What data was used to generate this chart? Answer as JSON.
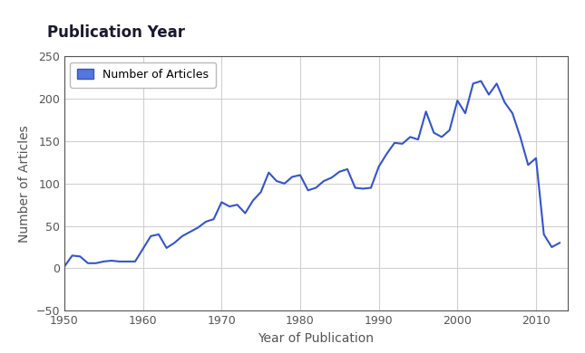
{
  "title": "Publication Year",
  "xlabel": "Year of Publication",
  "ylabel": "Number of Articles",
  "legend_label": "Number of Articles",
  "line_color": "#3355cc",
  "legend_fill_color": "#5577dd",
  "background_color": "#ffffff",
  "grid_color": "#d0d0d0",
  "spine_color": "#555555",
  "tick_color": "#555555",
  "xlim": [
    1950,
    2014
  ],
  "ylim": [
    -50,
    250
  ],
  "yticks": [
    -50,
    0,
    50,
    100,
    150,
    200,
    250
  ],
  "xticks": [
    1950,
    1960,
    1970,
    1980,
    1990,
    2000,
    2010
  ],
  "years": [
    1950,
    1951,
    1952,
    1953,
    1954,
    1955,
    1956,
    1957,
    1958,
    1959,
    1960,
    1961,
    1962,
    1963,
    1964,
    1965,
    1966,
    1967,
    1968,
    1969,
    1970,
    1971,
    1972,
    1973,
    1974,
    1975,
    1976,
    1977,
    1978,
    1979,
    1980,
    1981,
    1982,
    1983,
    1984,
    1985,
    1986,
    1987,
    1988,
    1989,
    1990,
    1991,
    1992,
    1993,
    1994,
    1995,
    1996,
    1997,
    1998,
    1999,
    2000,
    2001,
    2002,
    2003,
    2004,
    2005,
    2006,
    2007,
    2008,
    2009,
    2010,
    2011,
    2012,
    2013
  ],
  "values": [
    2,
    15,
    14,
    6,
    6,
    8,
    9,
    8,
    8,
    8,
    23,
    38,
    40,
    24,
    30,
    38,
    43,
    48,
    55,
    58,
    78,
    73,
    75,
    65,
    80,
    90,
    113,
    103,
    100,
    108,
    110,
    92,
    95,
    103,
    107,
    114,
    117,
    95,
    94,
    95,
    120,
    135,
    148,
    147,
    155,
    152,
    185,
    160,
    155,
    163,
    198,
    183,
    218,
    221,
    205,
    218,
    196,
    183,
    155,
    122,
    130,
    40,
    25,
    30
  ]
}
